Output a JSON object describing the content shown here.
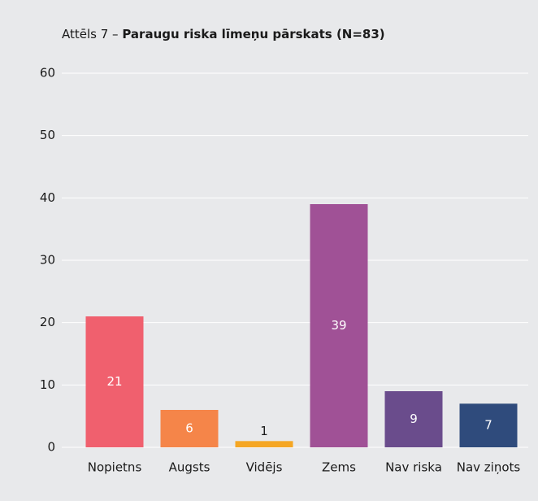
{
  "chart_data": {
    "type": "bar",
    "figure_label": "Attēls 7 –",
    "title": "Paraugu riska līmeņu pārskats (N=83)",
    "categories": [
      "Nopietns",
      "Augsts",
      "Vidējs",
      "Zems",
      "Nav riska",
      "Nav ziņots"
    ],
    "values": [
      21,
      6,
      1,
      39,
      9,
      7
    ],
    "colors": [
      "#f0606e",
      "#f58549",
      "#f5a623",
      "#a05196",
      "#6a4c8c",
      "#2f4b7c"
    ],
    "ylim": [
      0,
      60
    ],
    "yticks": [
      0,
      10,
      20,
      30,
      40,
      50,
      60
    ],
    "grid": true
  }
}
